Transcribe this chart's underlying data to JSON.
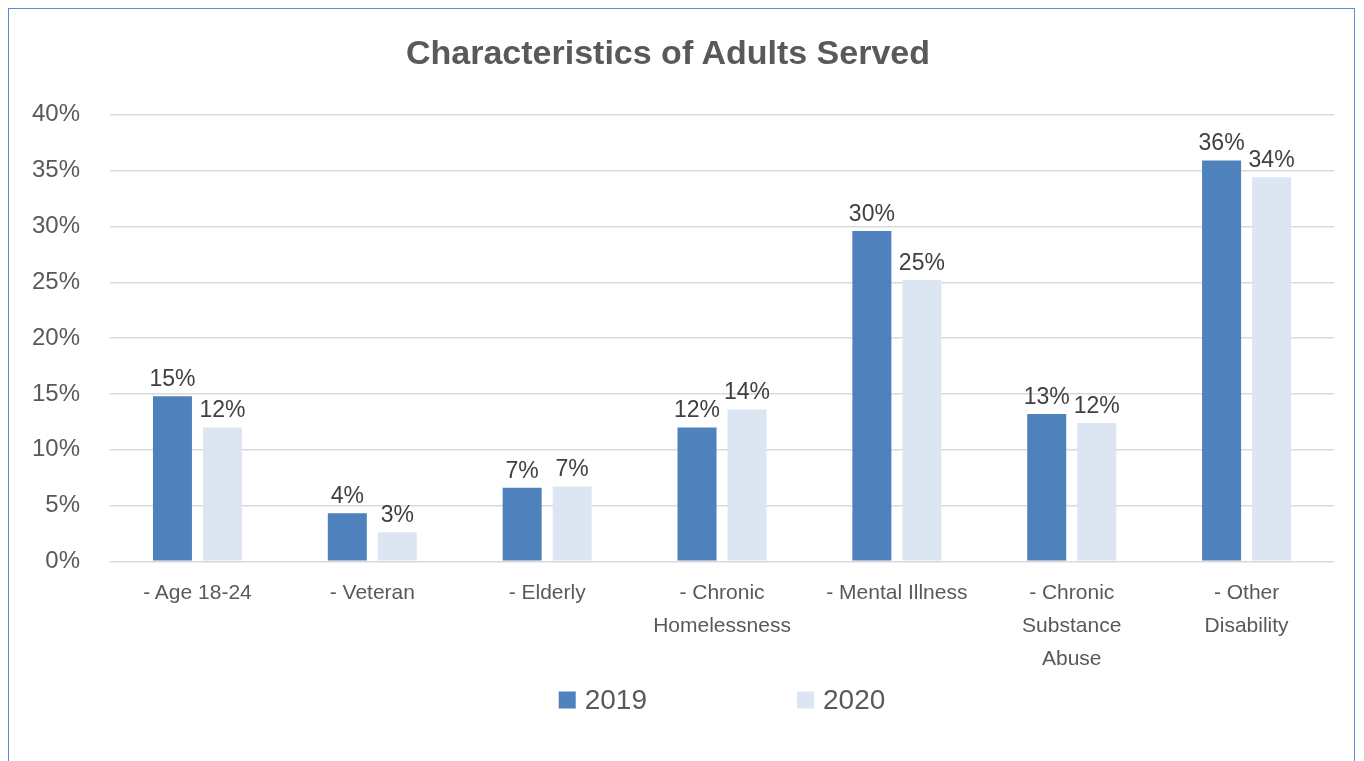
{
  "chart_data": {
    "type": "bar",
    "title": "Characteristics of Adults Served",
    "categories": [
      "- Age 18-24",
      "- Veteran",
      "- Elderly",
      "- Chronic Homelessness",
      "- Mental Illness",
      "- Chronic Substance Abuse",
      "- Other Disability"
    ],
    "series": [
      {
        "name": "2019",
        "color": "#4f81bd",
        "values": [
          14.8,
          4.3,
          6.6,
          12.0,
          29.6,
          13.2,
          35.9
        ],
        "value_labels": [
          "15%",
          "4%",
          "7%",
          "12%",
          "30%",
          "13%",
          "36%"
        ]
      },
      {
        "name": "2020",
        "color": "#dce6f2",
        "values": [
          12.0,
          2.6,
          6.7,
          13.6,
          25.2,
          12.4,
          34.4
        ],
        "value_labels": [
          "12%",
          "3%",
          "7%",
          "14%",
          "25%",
          "12%",
          "34%"
        ]
      }
    ],
    "ylim": [
      0,
      40
    ],
    "yticks": [
      {
        "value": 0,
        "label": "0%"
      },
      {
        "value": 5,
        "label": "5%"
      },
      {
        "value": 10,
        "label": "10%"
      },
      {
        "value": 15,
        "label": "15%"
      },
      {
        "value": 20,
        "label": "20%"
      },
      {
        "value": 25,
        "label": "25%"
      },
      {
        "value": 30,
        "label": "30%"
      },
      {
        "value": 35,
        "label": "35%"
      },
      {
        "value": 40,
        "label": "40%"
      }
    ],
    "grid": "y",
    "legend": "bottom"
  }
}
